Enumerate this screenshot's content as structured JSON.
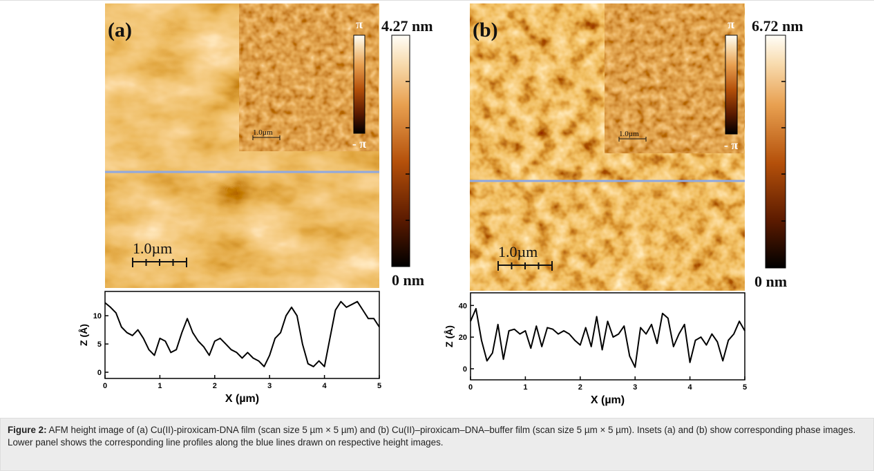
{
  "figure": {
    "panels": [
      {
        "label": "(a)",
        "colorbar_max": "4.27 nm",
        "colorbar_min": "0 nm",
        "scale_bar": "1.0µm",
        "inset_phase_max": "π",
        "inset_phase_min": "- π",
        "inset_scale_bar": "1.0µm"
      },
      {
        "label": "(b)",
        "colorbar_max": "6.72 nm",
        "colorbar_min": "0 nm",
        "scale_bar": "1.0µm",
        "inset_phase_max": "π",
        "inset_phase_min": "- π",
        "inset_scale_bar": "1.0µm"
      }
    ]
  },
  "chart_data": [
    {
      "type": "line",
      "xlabel": "X (µm)",
      "ylabel": "Z (Å)",
      "color": "#000000",
      "x": [
        0,
        0.1,
        0.2,
        0.3,
        0.4,
        0.5,
        0.6,
        0.7,
        0.8,
        0.9,
        1,
        1.1,
        1.2,
        1.3,
        1.4,
        1.5,
        1.6,
        1.7,
        1.8,
        1.9,
        2,
        2.1,
        2.2,
        2.3,
        2.4,
        2.5,
        2.6,
        2.7,
        2.8,
        2.9,
        3,
        3.1,
        3.2,
        3.3,
        3.4,
        3.5,
        3.6,
        3.7,
        3.8,
        3.9,
        4,
        4.1,
        4.2,
        4.3,
        4.4,
        4.5,
        4.6,
        4.7,
        4.8,
        4.9,
        5
      ],
      "values": [
        12.3,
        11.5,
        10.5,
        8,
        7,
        6.5,
        7.5,
        6,
        4,
        3,
        6,
        5.5,
        3.5,
        4,
        7,
        9.5,
        7,
        5.5,
        4.5,
        3,
        5.5,
        6,
        5,
        4,
        3.5,
        2.5,
        3.5,
        2.5,
        2,
        1,
        3,
        6,
        7,
        10,
        11.5,
        10,
        5,
        1.5,
        1,
        2,
        1,
        6,
        11,
        12.5,
        11.5,
        12,
        12.5,
        11,
        9.5,
        9.5,
        8
      ],
      "xlim": [
        0,
        5
      ],
      "xticks": [
        0,
        1,
        2,
        3,
        4,
        5
      ],
      "ylim": [
        -1.1,
        14.3
      ],
      "yticks": [
        0,
        5,
        10
      ]
    },
    {
      "type": "line",
      "xlabel": "X (µm)",
      "ylabel": "Z (Å)",
      "color": "#000000",
      "x": [
        0,
        0.1,
        0.2,
        0.3,
        0.4,
        0.5,
        0.6,
        0.7,
        0.8,
        0.9,
        1,
        1.1,
        1.2,
        1.3,
        1.4,
        1.5,
        1.6,
        1.7,
        1.8,
        1.9,
        2,
        2.1,
        2.2,
        2.3,
        2.4,
        2.5,
        2.6,
        2.7,
        2.8,
        2.9,
        3,
        3.1,
        3.2,
        3.3,
        3.4,
        3.5,
        3.6,
        3.7,
        3.8,
        3.9,
        4,
        4.1,
        4.2,
        4.3,
        4.4,
        4.5,
        4.6,
        4.7,
        4.8,
        4.9,
        5
      ],
      "values": [
        30,
        38,
        18,
        5,
        10,
        28,
        6,
        24,
        25,
        22,
        24,
        13,
        27,
        14,
        26,
        25,
        22,
        24,
        22,
        18,
        15,
        26,
        14,
        33,
        12,
        30,
        20,
        22,
        27,
        8,
        1,
        26,
        22,
        28,
        16,
        35,
        32,
        14,
        22,
        28,
        4,
        18,
        20,
        15,
        22,
        17,
        5,
        18,
        22,
        30,
        24
      ],
      "xlim": [
        0,
        5
      ],
      "xticks": [
        0,
        1,
        2,
        3,
        4,
        5
      ],
      "ylim": [
        -7,
        48
      ],
      "yticks": [
        0,
        20,
        40
      ]
    }
  ],
  "caption": {
    "label": "Figure 2:",
    "text": "AFM height image of (a) Cu(II)-piroxicam-DNA film (scan size 5 µm × 5 µm) and (b) Cu(II)–piroxicam–DNA–buffer film (scan size 5 µm × 5 µm). Insets (a) and (b) show corresponding phase images. Lower panel shows the corresponding line profiles along the blue lines drawn on respective height images."
  }
}
